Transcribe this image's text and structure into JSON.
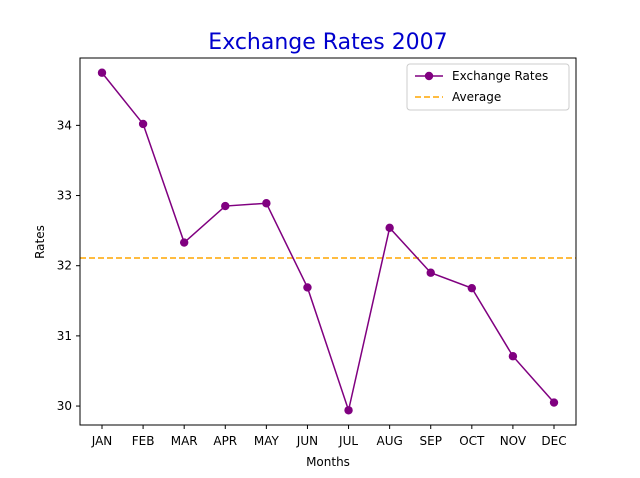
{
  "chart_data": {
    "type": "line",
    "title": "Exchange Rates 2007",
    "xlabel": "Months",
    "ylabel": "Rates",
    "categories": [
      "JAN",
      "FEB",
      "MAR",
      "APR",
      "MAY",
      "JUN",
      "JUL",
      "AUG",
      "SEP",
      "OCT",
      "NOV",
      "DEC"
    ],
    "series": [
      {
        "name": "Exchange Rates",
        "values": [
          34.75,
          34.02,
          32.33,
          32.85,
          32.89,
          31.69,
          29.94,
          32.54,
          31.9,
          31.68,
          30.71,
          30.05
        ],
        "color": "#800080",
        "marker": "circle"
      }
    ],
    "reference_lines": [
      {
        "name": "Average",
        "value": 32.11,
        "color": "#FFA500",
        "style": "dashed"
      }
    ],
    "ylim": [
      29.73,
      34.96
    ],
    "yticks": [
      30,
      31,
      32,
      33,
      34
    ],
    "grid": false,
    "legend_position": "top-right",
    "title_color": "#0000CD"
  }
}
